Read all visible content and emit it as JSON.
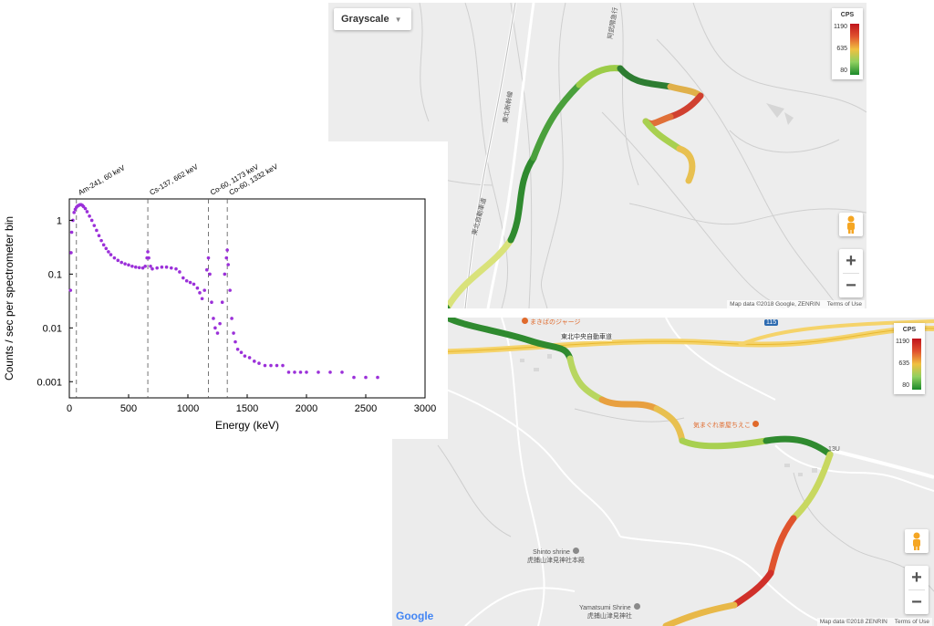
{
  "chart_data": {
    "type": "scatter",
    "title": "",
    "xlabel": "Energy (keV)",
    "ylabel": "Counts / sec per spectrometer bin",
    "xlim": [
      0,
      3000
    ],
    "ylim": [
      0.0005,
      2.5
    ],
    "yscale": "log",
    "x_ticks": [
      0,
      500,
      1000,
      1500,
      2000,
      2500,
      3000
    ],
    "y_ticks": [
      {
        "value": 1,
        "label": "1"
      },
      {
        "value": 0.1,
        "label": "0.1"
      },
      {
        "value": 0.01,
        "label": "0.01"
      },
      {
        "value": 0.001,
        "label": "0.001"
      }
    ],
    "grid": false,
    "marker_color": "#9b30d9",
    "reference_lines": [
      {
        "x": 60,
        "label": "Am-241, 60 keV"
      },
      {
        "x": 662,
        "label": "Cs-137, 662 keV"
      },
      {
        "x": 1173,
        "label": "Co-60, 1173 keV"
      },
      {
        "x": 1332,
        "label": "Co-60, 1332 keV"
      }
    ],
    "series": [
      {
        "points": [
          [
            10,
            0.05
          ],
          [
            15,
            0.25
          ],
          [
            20,
            0.6
          ],
          [
            30,
            1.0
          ],
          [
            40,
            1.4
          ],
          [
            50,
            1.6
          ],
          [
            60,
            1.75
          ],
          [
            70,
            1.85
          ],
          [
            80,
            1.9
          ],
          [
            90,
            1.95
          ],
          [
            100,
            1.95
          ],
          [
            110,
            1.9
          ],
          [
            120,
            1.8
          ],
          [
            135,
            1.65
          ],
          [
            150,
            1.45
          ],
          [
            170,
            1.2
          ],
          [
            190,
            1.0
          ],
          [
            210,
            0.8
          ],
          [
            230,
            0.65
          ],
          [
            250,
            0.52
          ],
          [
            270,
            0.42
          ],
          [
            290,
            0.35
          ],
          [
            310,
            0.3
          ],
          [
            330,
            0.26
          ],
          [
            350,
            0.23
          ],
          [
            380,
            0.2
          ],
          [
            410,
            0.18
          ],
          [
            440,
            0.165
          ],
          [
            470,
            0.155
          ],
          [
            500,
            0.148
          ],
          [
            530,
            0.14
          ],
          [
            560,
            0.135
          ],
          [
            590,
            0.132
          ],
          [
            620,
            0.13
          ],
          [
            640,
            0.14
          ],
          [
            655,
            0.2
          ],
          [
            662,
            0.26
          ],
          [
            670,
            0.2
          ],
          [
            685,
            0.14
          ],
          [
            700,
            0.125
          ],
          [
            740,
            0.13
          ],
          [
            780,
            0.135
          ],
          [
            820,
            0.135
          ],
          [
            860,
            0.13
          ],
          [
            900,
            0.125
          ],
          [
            930,
            0.11
          ],
          [
            960,
            0.085
          ],
          [
            990,
            0.075
          ],
          [
            1020,
            0.07
          ],
          [
            1050,
            0.065
          ],
          [
            1080,
            0.055
          ],
          [
            1100,
            0.045
          ],
          [
            1120,
            0.035
          ],
          [
            1140,
            0.05
          ],
          [
            1160,
            0.12
          ],
          [
            1173,
            0.2
          ],
          [
            1185,
            0.1
          ],
          [
            1200,
            0.03
          ],
          [
            1215,
            0.015
          ],
          [
            1230,
            0.01
          ],
          [
            1250,
            0.008
          ],
          [
            1270,
            0.012
          ],
          [
            1290,
            0.03
          ],
          [
            1310,
            0.1
          ],
          [
            1325,
            0.2
          ],
          [
            1332,
            0.28
          ],
          [
            1340,
            0.15
          ],
          [
            1355,
            0.05
          ],
          [
            1370,
            0.015
          ],
          [
            1385,
            0.008
          ],
          [
            1400,
            0.0055
          ],
          [
            1420,
            0.004
          ],
          [
            1450,
            0.0035
          ],
          [
            1480,
            0.003
          ],
          [
            1520,
            0.0028
          ],
          [
            1560,
            0.0024
          ],
          [
            1600,
            0.0022
          ],
          [
            1650,
            0.002
          ],
          [
            1700,
            0.002
          ],
          [
            1750,
            0.002
          ],
          [
            1800,
            0.002
          ],
          [
            1850,
            0.0015
          ],
          [
            1900,
            0.0015
          ],
          [
            1950,
            0.0015
          ],
          [
            2000,
            0.0015
          ],
          [
            2100,
            0.0015
          ],
          [
            2200,
            0.0015
          ],
          [
            2300,
            0.0015
          ],
          [
            2400,
            0.0012
          ],
          [
            2500,
            0.0012
          ],
          [
            2600,
            0.0012
          ]
        ]
      }
    ]
  },
  "map_top": {
    "map_type_label": "Grayscale",
    "legend": {
      "title": "CPS",
      "max": "1190",
      "mid": "635",
      "min": "80"
    },
    "place_labels": [
      "東北新幹線",
      "阿武隈急行",
      "東北自動車道"
    ],
    "attribution": "Map data ©2018 Google, ZENRIN",
    "terms": "Terms of Use"
  },
  "map_bottom": {
    "legend": {
      "title": "CPS",
      "max": "1190",
      "mid": "635",
      "min": "80"
    },
    "highway_label": "東北中央自動車道",
    "route_number": "115",
    "places": [
      {
        "name": "まきばのジャージ",
        "kind": "poi"
      },
      {
        "name": "気まぐれ茶屋ちえこ",
        "kind": "poi"
      },
      {
        "name": "Shinto shrine",
        "sub": "虎捕山津見神社本殿",
        "kind": "place"
      },
      {
        "name": "Yamatsumi Shrine",
        "sub": "虎捕山津見神社",
        "kind": "place"
      }
    ],
    "road_label": "13U",
    "google_logo": "Google",
    "attribution": "Map data ©2018 ZENRIN",
    "terms": "Terms of Use"
  }
}
